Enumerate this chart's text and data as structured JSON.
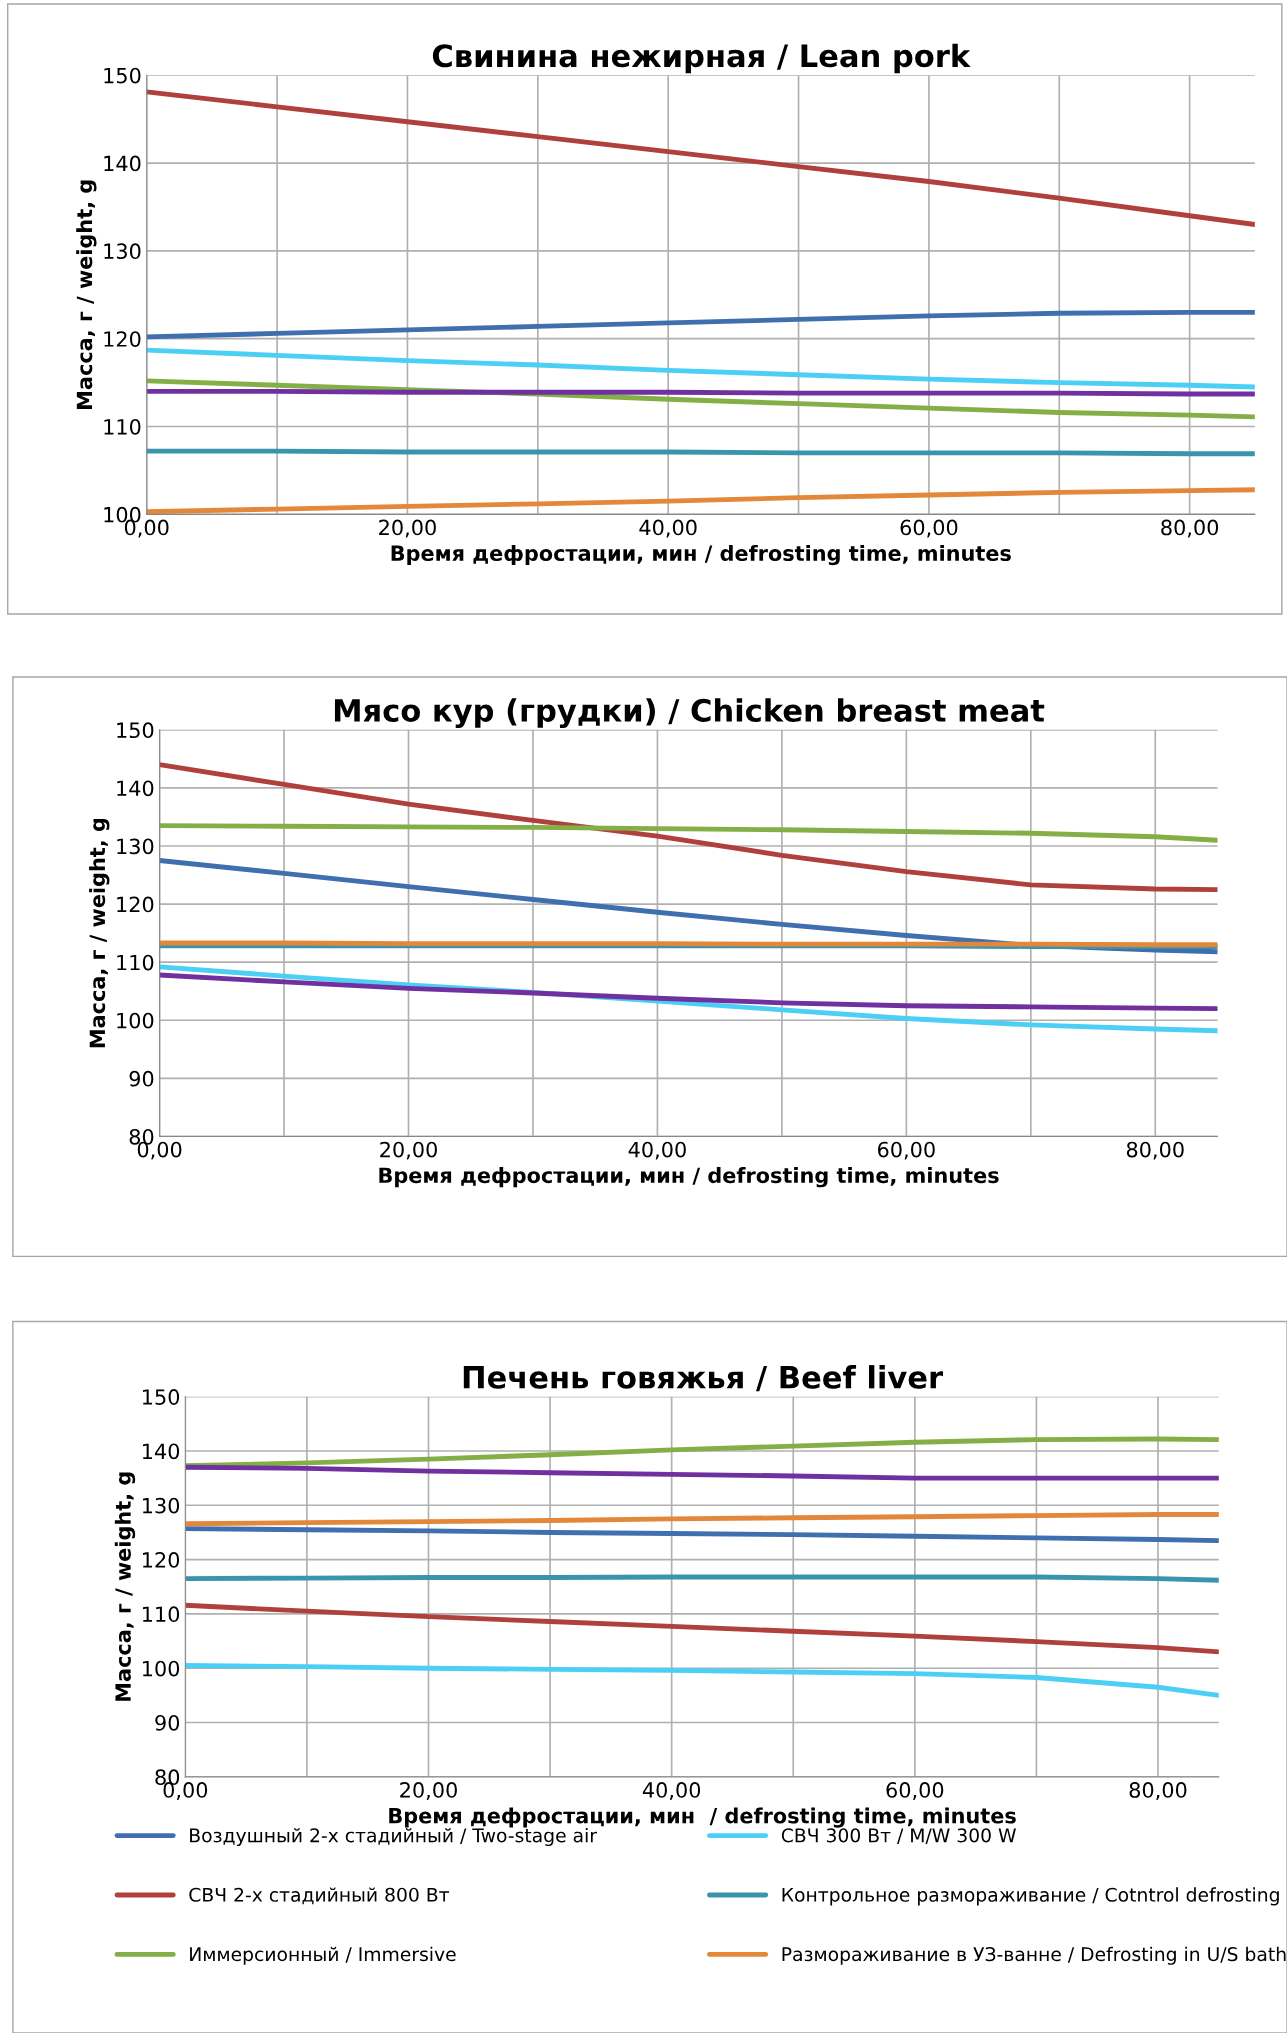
{
  "chart_data": [
    {
      "type": "line",
      "title": "Свинина нежирная / Lean pork",
      "xlabel": "Время дефростации, мин / defrosting time, minutes",
      "ylabel": "Масса, г / weight, g",
      "x": [
        0,
        10,
        20,
        30,
        40,
        50,
        60,
        70,
        80,
        85
      ],
      "xlim": [
        0,
        85
      ],
      "xticks": [
        {
          "value": 0,
          "label": "0,00"
        },
        {
          "value": 10,
          "label": null
        },
        {
          "value": 20,
          "label": "20,00"
        },
        {
          "value": 30,
          "label": null
        },
        {
          "value": 40,
          "label": "40,00"
        },
        {
          "value": 50,
          "label": null
        },
        {
          "value": 60,
          "label": "60,00"
        },
        {
          "value": 70,
          "label": null
        },
        {
          "value": 80,
          "label": "80,00"
        }
      ],
      "ylim": [
        100,
        150
      ],
      "yticks": [
        100,
        110,
        120,
        130,
        140,
        150
      ],
      "grid": true,
      "legend": false,
      "series": [
        {
          "color": "#3f6fae",
          "values": [
            120.2,
            120.6,
            121.0,
            121.4,
            121.8,
            122.2,
            122.6,
            122.9,
            123.0,
            123.0
          ]
        },
        {
          "color": "#b0403e",
          "values": [
            148.1,
            146.4,
            144.7,
            143.0,
            141.3,
            139.6,
            137.9,
            136.0,
            134.0,
            133.0
          ]
        },
        {
          "color": "#84ae46",
          "values": [
            115.2,
            114.7,
            114.2,
            113.7,
            113.1,
            112.6,
            112.1,
            111.6,
            111.3,
            111.1
          ]
        },
        {
          "color": "#4ccff5",
          "values": [
            118.7,
            118.1,
            117.5,
            117.0,
            116.4,
            115.9,
            115.4,
            115.0,
            114.7,
            114.5
          ]
        },
        {
          "color": "#3a94ac",
          "values": [
            107.2,
            107.2,
            107.1,
            107.1,
            107.1,
            107.0,
            107.0,
            107.0,
            106.9,
            106.9
          ]
        },
        {
          "color": "#e3883a",
          "values": [
            100.3,
            100.6,
            100.9,
            101.2,
            101.5,
            101.9,
            102.2,
            102.5,
            102.7,
            102.8
          ]
        },
        {
          "color": "#7030a0",
          "values": [
            114.0,
            114.0,
            113.9,
            113.9,
            113.9,
            113.8,
            113.8,
            113.8,
            113.7,
            113.7
          ]
        }
      ]
    },
    {
      "type": "line",
      "title": "Мясо кур (грудки) / Chicken breast meat",
      "xlabel": "Время дефростации, мин / defrosting time, minutes",
      "ylabel": "Масса, г / weight, g",
      "x": [
        0,
        10,
        20,
        30,
        40,
        50,
        60,
        70,
        80,
        85
      ],
      "xlim": [
        0,
        85
      ],
      "xticks": [
        {
          "value": 0,
          "label": "0,00"
        },
        {
          "value": 10,
          "label": null
        },
        {
          "value": 20,
          "label": "20,00"
        },
        {
          "value": 30,
          "label": null
        },
        {
          "value": 40,
          "label": "40,00"
        },
        {
          "value": 50,
          "label": null
        },
        {
          "value": 60,
          "label": "60,00"
        },
        {
          "value": 70,
          "label": null
        },
        {
          "value": 80,
          "label": "80,00"
        }
      ],
      "ylim": [
        80,
        150
      ],
      "yticks": [
        80,
        90,
        100,
        110,
        120,
        130,
        140,
        150
      ],
      "grid": true,
      "legend": false,
      "series": [
        {
          "color": "#3f6fae",
          "values": [
            127.5,
            125.3,
            123.0,
            120.8,
            118.6,
            116.5,
            114.6,
            112.9,
            112.1,
            111.8
          ]
        },
        {
          "color": "#b0403e",
          "values": [
            144.0,
            140.6,
            137.2,
            134.4,
            131.7,
            128.4,
            125.6,
            123.3,
            122.6,
            122.5
          ]
        },
        {
          "color": "#84ae46",
          "values": [
            133.5,
            133.4,
            133.3,
            133.2,
            133.0,
            132.8,
            132.5,
            132.2,
            131.6,
            131.0
          ]
        },
        {
          "color": "#4ccff5",
          "values": [
            109.2,
            107.6,
            106.1,
            104.8,
            103.3,
            101.8,
            100.3,
            99.2,
            98.5,
            98.2
          ]
        },
        {
          "color": "#3a94ac",
          "values": [
            112.8,
            112.8,
            112.8,
            112.8,
            112.8,
            112.8,
            112.8,
            112.7,
            112.7,
            112.7
          ]
        },
        {
          "color": "#e3883a",
          "values": [
            113.3,
            113.3,
            113.2,
            113.2,
            113.2,
            113.1,
            113.1,
            113.1,
            113.0,
            113.0
          ]
        },
        {
          "color": "#7030a0",
          "values": [
            107.8,
            106.6,
            105.5,
            104.7,
            103.8,
            103.0,
            102.5,
            102.3,
            102.1,
            102.0
          ]
        }
      ]
    },
    {
      "type": "line",
      "title": "Печень говяжья / Beef liver",
      "xlabel": "Время дефростации, мин  / defrosting time, minutes",
      "ylabel": "Масса, г / weight, g",
      "x": [
        0,
        10,
        20,
        30,
        40,
        50,
        60,
        70,
        80,
        85
      ],
      "xlim": [
        0,
        85
      ],
      "xticks": [
        {
          "value": 0,
          "label": "0,00"
        },
        {
          "value": 10,
          "label": null
        },
        {
          "value": 20,
          "label": "20,00"
        },
        {
          "value": 30,
          "label": null
        },
        {
          "value": 40,
          "label": "40,00"
        },
        {
          "value": 50,
          "label": null
        },
        {
          "value": 60,
          "label": "60,00"
        },
        {
          "value": 70,
          "label": null
        },
        {
          "value": 80,
          "label": "80,00"
        }
      ],
      "ylim": [
        80,
        150
      ],
      "yticks": [
        80,
        90,
        100,
        110,
        120,
        130,
        140,
        150
      ],
      "grid": true,
      "legend": "bottom",
      "series": [
        {
          "name": "Воздушный 2-х стадийный / Two-stage air",
          "color": "#3f6fae",
          "values": [
            125.7,
            125.5,
            125.3,
            125.0,
            124.8,
            124.6,
            124.3,
            124.0,
            123.7,
            123.5
          ]
        },
        {
          "name": "СВЧ 2-х стадийный 800 Вт",
          "color": "#b0403e",
          "values": [
            111.6,
            110.5,
            109.5,
            108.6,
            107.7,
            106.8,
            105.9,
            104.9,
            103.8,
            103.0
          ]
        },
        {
          "name": "Иммерсионный / Immersive",
          "color": "#84ae46",
          "values": [
            137.3,
            137.8,
            138.5,
            139.3,
            140.2,
            140.9,
            141.6,
            142.1,
            142.2,
            142.1
          ]
        },
        {
          "name": "СВЧ 300 Вт / M/W 300 W",
          "color": "#4ccff5",
          "values": [
            100.5,
            100.3,
            100.0,
            99.8,
            99.6,
            99.3,
            99.0,
            98.3,
            96.5,
            95.0
          ]
        },
        {
          "name": "Контрольное размораживание / Cotntrol defrosting",
          "color": "#3a94ac",
          "values": [
            116.5,
            116.6,
            116.7,
            116.7,
            116.8,
            116.8,
            116.8,
            116.8,
            116.5,
            116.2
          ]
        },
        {
          "name": "Размораживание в УЗ-ванне / Defrosting in U/S bath",
          "color": "#e3883a",
          "values": [
            126.6,
            126.8,
            127.0,
            127.2,
            127.5,
            127.7,
            127.9,
            128.1,
            128.3,
            128.3
          ]
        },
        {
          "color": "#7030a0",
          "values": [
            137.0,
            136.8,
            136.3,
            136.0,
            135.7,
            135.4,
            135.0,
            135.0,
            135.0,
            135.0
          ]
        }
      ]
    }
  ]
}
